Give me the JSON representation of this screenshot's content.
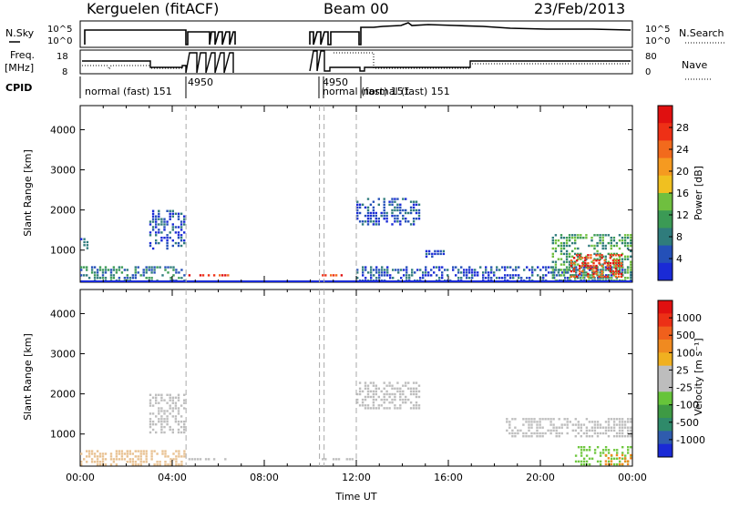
{
  "header": {
    "title_left": "Kerguelen (fitACF)",
    "title_center": "Beam 00",
    "title_right": "23/Feb/2013"
  },
  "summary_panels": {
    "nsky": {
      "label": "N.Sky",
      "right_label": "N.Search",
      "ticks_left": [
        "10^5",
        "10^0"
      ],
      "ticks_right": [
        "10^5",
        "10^0"
      ]
    },
    "freq": {
      "label_line1": "Freq.",
      "label_line2": "[MHz]",
      "right_label": "Nave",
      "ticks_left": [
        "18",
        "8"
      ],
      "ticks_right": [
        "80",
        "0"
      ]
    },
    "cpid": {
      "label": "CPID",
      "mode_labels": [
        {
          "text": "normal (fast) 151",
          "t": 0.3
        },
        {
          "text": "4950",
          "t": 4.7
        },
        {
          "text": "4950",
          "t": 10.6
        },
        {
          "text": "normal (fast) 151",
          "t": 10.6
        },
        {
          "text": "normal (fast) 151",
          "t": 12.1
        }
      ]
    }
  },
  "chart_data": [
    {
      "type": "heatmap",
      "name": "Power",
      "ylabel": "Slant Range [km]",
      "y_ticks": [
        "1000",
        "2000",
        "3000",
        "4000"
      ],
      "ylim": [
        200,
        4600
      ],
      "xlim": [
        0,
        24
      ],
      "colorbar": {
        "label": "Power [dB]",
        "ticks": [
          "4",
          "8",
          "12",
          "16",
          "20",
          "24",
          "28"
        ],
        "colors": [
          "#1a2ad6",
          "#2450b8",
          "#2f7c7c",
          "#3b9a55",
          "#6fbf3f",
          "#f0c020",
          "#f59a20",
          "#f26a1c",
          "#ee3016",
          "#e01010"
        ]
      },
      "echo_regions": [
        {
          "t0": 0.0,
          "t1": 4.6,
          "r0": 200,
          "r1": 600,
          "level": 2
        },
        {
          "t0": 0.0,
          "t1": 0.4,
          "r0": 1000,
          "r1": 1300,
          "level": 1
        },
        {
          "t0": 3.0,
          "t1": 4.6,
          "r0": 1000,
          "r1": 2000,
          "level": 1
        },
        {
          "t0": 4.7,
          "t1": 6.5,
          "r0": 300,
          "r1": 400,
          "level": 8
        },
        {
          "t0": 10.5,
          "t1": 11.9,
          "r0": 300,
          "r1": 400,
          "level": 8
        },
        {
          "t0": 12.0,
          "t1": 14.8,
          "r0": 1600,
          "r1": 2300,
          "level": 1
        },
        {
          "t0": 12.0,
          "t1": 24.0,
          "r0": 200,
          "r1": 600,
          "level": 1
        },
        {
          "t0": 15.0,
          "t1": 16.0,
          "r0": 800,
          "r1": 1000,
          "level": 1
        },
        {
          "t0": 20.5,
          "t1": 24.0,
          "r0": 200,
          "r1": 1400,
          "level": 3
        },
        {
          "t0": 21.3,
          "t1": 23.6,
          "r0": 300,
          "r1": 900,
          "level": 8
        }
      ]
    },
    {
      "type": "heatmap",
      "name": "Velocity",
      "ylabel": "Slant Range [km]",
      "xlabel": "Time UT",
      "x_ticks": [
        "00:00",
        "04:00",
        "08:00",
        "12:00",
        "16:00",
        "20:00",
        "00:00"
      ],
      "y_ticks": [
        "1000",
        "2000",
        "3000",
        "4000"
      ],
      "ylim": [
        200,
        4600
      ],
      "xlim": [
        0,
        24
      ],
      "colorbar": {
        "label": "Velocity [m s⁻¹]",
        "ticks": [
          "1000",
          "500",
          "100",
          "25",
          "-25",
          "-100",
          "-500",
          "-1000"
        ],
        "colors": [
          "#1a2ad6",
          "#2f5cae",
          "#2f8a6a",
          "#3e9a44",
          "#66c43a",
          "#bdbdbd",
          "#bdbdbd",
          "#f0b020",
          "#f08a20",
          "#f0601c",
          "#ec3016",
          "#e01010"
        ]
      },
      "echo_regions": [
        {
          "t0": 0.0,
          "t1": 4.6,
          "r0": 200,
          "r1": 600,
          "color": "#e8c090"
        },
        {
          "t0": 3.0,
          "t1": 4.6,
          "r0": 1000,
          "r1": 2000,
          "color": "#bdbdbd"
        },
        {
          "t0": 4.7,
          "t1": 6.5,
          "r0": 300,
          "r1": 400,
          "color": "#bdbdbd"
        },
        {
          "t0": 10.5,
          "t1": 11.9,
          "r0": 300,
          "r1": 400,
          "color": "#bdbdbd"
        },
        {
          "t0": 12.0,
          "t1": 14.8,
          "r0": 1600,
          "r1": 2300,
          "color": "#bdbdbd"
        },
        {
          "t0": 18.5,
          "t1": 24.0,
          "r0": 900,
          "r1": 1400,
          "color": "#bdbdbd"
        },
        {
          "t0": 21.5,
          "t1": 24.0,
          "r0": 200,
          "r1": 700,
          "color": "#70c840"
        },
        {
          "t0": 22.8,
          "t1": 24.0,
          "r0": 200,
          "r1": 500,
          "color": "#f08a20"
        }
      ]
    }
  ]
}
